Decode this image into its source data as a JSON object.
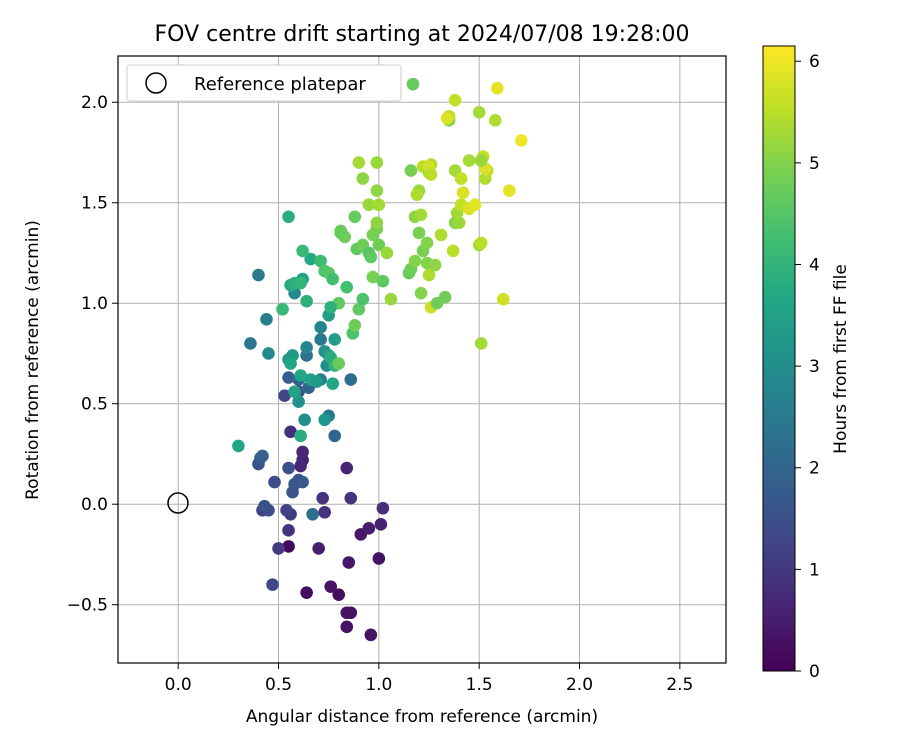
{
  "chart_data": {
    "type": "scatter",
    "title": "FOV centre drift starting at 2024/07/08 19:28:00",
    "xlabel": "Angular distance from reference (arcmin)",
    "ylabel": "Rotation from reference (arcmin)",
    "xlim": [
      -0.3,
      2.73
    ],
    "ylim": [
      -0.79,
      2.23
    ],
    "x_ticks": [
      0.0,
      0.5,
      1.0,
      1.5,
      2.0,
      2.5
    ],
    "x_tick_labels": [
      "0.0",
      "0.5",
      "1.0",
      "1.5",
      "2.0",
      "2.5"
    ],
    "y_ticks": [
      -0.5,
      0.0,
      0.5,
      1.0,
      1.5,
      2.0
    ],
    "y_tick_labels": [
      "−0.5",
      "0.0",
      "0.5",
      "1.0",
      "1.5",
      "2.0"
    ],
    "grid": true,
    "legend": {
      "placement": "top-left",
      "entries": [
        "Reference platepar"
      ]
    },
    "reference_point": {
      "x": 0.0,
      "y": 0.0,
      "marker": "open-circle"
    },
    "colorbar": {
      "label": "Hours from first FF file",
      "range": [
        0,
        6.15
      ],
      "ticks": [
        0,
        1,
        2,
        3,
        4,
        5,
        6
      ],
      "tick_labels": [
        "0",
        "1",
        "2",
        "3",
        "4",
        "5",
        "6"
      ],
      "colormap": "viridis"
    },
    "points": [
      [
        0.55,
        -0.21,
        0.1
      ],
      [
        0.64,
        -0.44,
        0.2
      ],
      [
        0.8,
        -0.45,
        0.2
      ],
      [
        0.76,
        -0.41,
        0.3
      ],
      [
        0.84,
        -0.54,
        0.3
      ],
      [
        0.86,
        -0.54,
        0.3
      ],
      [
        0.84,
        -0.61,
        0.3
      ],
      [
        0.96,
        -0.65,
        0.3
      ],
      [
        1.0,
        -0.27,
        0.3
      ],
      [
        0.7,
        -0.22,
        0.5
      ],
      [
        0.85,
        -0.29,
        0.4
      ],
      [
        0.91,
        -0.15,
        0.4
      ],
      [
        0.95,
        -0.12,
        0.5
      ],
      [
        1.01,
        -0.1,
        0.6
      ],
      [
        1.02,
        -0.02,
        0.8
      ],
      [
        0.86,
        0.03,
        0.9
      ],
      [
        0.73,
        -0.04,
        0.9
      ],
      [
        0.72,
        0.03,
        0.9
      ],
      [
        0.84,
        0.18,
        0.6
      ],
      [
        0.62,
        0.22,
        0.6
      ],
      [
        0.62,
        0.26,
        0.7
      ],
      [
        0.61,
        0.19,
        0.7
      ],
      [
        0.56,
        0.36,
        0.8
      ],
      [
        0.55,
        -0.13,
        0.9
      ],
      [
        0.5,
        -0.22,
        1.0
      ],
      [
        0.56,
        -0.05,
        1.1
      ],
      [
        0.54,
        -0.03,
        1.2
      ],
      [
        0.42,
        -0.03,
        1.2
      ],
      [
        0.47,
        -0.4,
        1.3
      ],
      [
        0.45,
        -0.03,
        1.4
      ],
      [
        0.43,
        -0.01,
        1.5
      ],
      [
        0.4,
        0.2,
        1.5
      ],
      [
        0.48,
        0.11,
        1.4
      ],
      [
        0.55,
        0.18,
        1.5
      ],
      [
        0.57,
        0.06,
        1.6
      ],
      [
        0.58,
        0.1,
        1.7
      ],
      [
        0.6,
        0.12,
        1.6
      ],
      [
        0.62,
        0.11,
        1.7
      ],
      [
        0.67,
        -0.05,
        2.2
      ],
      [
        0.41,
        0.23,
        1.8
      ],
      [
        0.42,
        0.24,
        1.9
      ],
      [
        0.53,
        0.54,
        1.3
      ],
      [
        0.55,
        0.63,
        1.8
      ],
      [
        0.6,
        0.62,
        1.9
      ],
      [
        0.6,
        0.56,
        1.6
      ],
      [
        0.65,
        0.58,
        2.0
      ],
      [
        0.64,
        0.74,
        2.3
      ],
      [
        0.71,
        0.62,
        2.6
      ],
      [
        0.75,
        0.44,
        2.5
      ],
      [
        0.78,
        0.34,
        2.0
      ],
      [
        0.86,
        0.62,
        2.2
      ],
      [
        0.73,
        0.42,
        3.2
      ],
      [
        0.63,
        0.42,
        3.0
      ],
      [
        0.6,
        0.51,
        3.1
      ],
      [
        0.58,
        0.56,
        3.5
      ],
      [
        0.61,
        0.64,
        3.6
      ],
      [
        0.71,
        0.82,
        2.5
      ],
      [
        0.64,
        0.78,
        2.8
      ],
      [
        0.71,
        0.88,
        2.8
      ],
      [
        0.55,
        0.72,
        3.2
      ],
      [
        0.57,
        0.74,
        3.3
      ],
      [
        0.56,
        0.7,
        3.6
      ],
      [
        0.66,
        0.62,
        3.5
      ],
      [
        0.69,
        0.61,
        3.3
      ],
      [
        0.74,
        0.69,
        3.0
      ],
      [
        0.73,
        0.76,
        3.1
      ],
      [
        0.75,
        0.74,
        3.4
      ],
      [
        0.76,
        0.73,
        3.8
      ],
      [
        0.78,
        0.69,
        4.0
      ],
      [
        0.77,
        0.6,
        3.6
      ],
      [
        0.78,
        0.82,
        3.4
      ],
      [
        0.75,
        0.94,
        3.4
      ],
      [
        0.8,
        0.7,
        4.7
      ],
      [
        0.3,
        0.29,
        3.6
      ],
      [
        0.61,
        0.34,
        3.8
      ],
      [
        0.45,
        0.75,
        2.9
      ],
      [
        0.36,
        0.8,
        2.4
      ],
      [
        0.44,
        0.92,
        2.6
      ],
      [
        0.4,
        1.14,
        2.5
      ],
      [
        0.58,
        1.05,
        2.9
      ],
      [
        0.56,
        1.09,
        3.7
      ],
      [
        0.58,
        1.1,
        3.9
      ],
      [
        0.62,
        1.12,
        3.5
      ],
      [
        0.64,
        1.01,
        3.9
      ],
      [
        0.52,
        0.97,
        4.1
      ],
      [
        0.61,
        1.1,
        4.0
      ],
      [
        0.66,
        1.22,
        3.7
      ],
      [
        0.62,
        1.26,
        4.1
      ],
      [
        0.55,
        1.43,
        3.8
      ],
      [
        0.71,
        1.21,
        4.2
      ],
      [
        0.73,
        1.16,
        4.4
      ],
      [
        0.75,
        1.15,
        4.5
      ],
      [
        0.77,
        1.12,
        4.3
      ],
      [
        0.8,
        1.0,
        4.6
      ],
      [
        0.76,
        0.98,
        3.9
      ],
      [
        0.84,
        1.08,
        4.3
      ],
      [
        0.87,
        0.85,
        4.4
      ],
      [
        0.88,
        0.89,
        4.8
      ],
      [
        0.9,
        0.97,
        4.6
      ],
      [
        0.92,
        1.02,
        4.4
      ],
      [
        0.81,
        1.35,
        4.6
      ],
      [
        0.83,
        1.33,
        4.8
      ],
      [
        0.81,
        1.36,
        4.7
      ],
      [
        0.89,
        1.27,
        4.6
      ],
      [
        0.92,
        1.29,
        4.8
      ],
      [
        0.95,
        1.25,
        4.5
      ],
      [
        0.97,
        1.34,
        4.9
      ],
      [
        0.99,
        1.37,
        4.9
      ],
      [
        1.0,
        1.29,
        4.8
      ],
      [
        0.99,
        1.4,
        5.1
      ],
      [
        0.96,
        1.23,
        4.6
      ],
      [
        0.97,
        1.13,
        4.9
      ],
      [
        0.88,
        1.43,
        4.7
      ],
      [
        0.95,
        1.49,
        5.2
      ],
      [
        0.99,
        1.56,
        5.1
      ],
      [
        1.0,
        1.49,
        5.3
      ],
      [
        0.92,
        1.62,
        5.1
      ],
      [
        0.9,
        1.7,
        5.3
      ],
      [
        0.99,
        1.7,
        5.2
      ],
      [
        1.02,
        1.11,
        4.6
      ],
      [
        1.04,
        1.25,
        5.2
      ],
      [
        1.06,
        1.02,
        5.2
      ],
      [
        1.15,
        1.15,
        4.7
      ],
      [
        1.16,
        1.17,
        4.8
      ],
      [
        1.18,
        1.21,
        5.0
      ],
      [
        1.21,
        1.05,
        5.0
      ],
      [
        1.24,
        1.2,
        5.0
      ],
      [
        1.25,
        1.14,
        5.4
      ],
      [
        1.26,
        0.98,
        5.7
      ],
      [
        1.29,
        1.0,
        4.8
      ],
      [
        1.33,
        1.03,
        4.8
      ],
      [
        1.22,
        1.26,
        4.9
      ],
      [
        1.28,
        1.19,
        5.1
      ],
      [
        1.24,
        1.3,
        5.0
      ],
      [
        1.2,
        1.35,
        4.9
      ],
      [
        1.31,
        1.34,
        5.4
      ],
      [
        1.37,
        1.26,
        5.5
      ],
      [
        1.38,
        1.4,
        5.0
      ],
      [
        1.4,
        1.4,
        5.2
      ],
      [
        1.39,
        1.45,
        5.3
      ],
      [
        1.41,
        1.49,
        5.6
      ],
      [
        1.42,
        1.55,
        5.8
      ],
      [
        1.41,
        1.62,
        5.6
      ],
      [
        1.45,
        1.47,
        5.8
      ],
      [
        1.48,
        1.49,
        5.9
      ],
      [
        1.5,
        1.29,
        5.3
      ],
      [
        1.51,
        1.3,
        5.5
      ],
      [
        1.51,
        0.8,
        5.3
      ],
      [
        1.62,
        1.02,
        5.7
      ],
      [
        1.18,
        1.43,
        5.1
      ],
      [
        1.21,
        1.44,
        5.3
      ],
      [
        1.2,
        1.56,
        5.2
      ],
      [
        1.19,
        1.54,
        5.4
      ],
      [
        1.22,
        1.68,
        5.5
      ],
      [
        1.25,
        1.65,
        5.3
      ],
      [
        1.26,
        1.69,
        5.4
      ],
      [
        1.25,
        1.68,
        5.7
      ],
      [
        1.26,
        1.64,
        5.5
      ],
      [
        1.16,
        1.66,
        4.9
      ],
      [
        1.38,
        1.66,
        5.3
      ],
      [
        1.41,
        1.62,
        5.6
      ],
      [
        1.45,
        1.71,
        5.3
      ],
      [
        1.52,
        1.73,
        5.6
      ],
      [
        1.53,
        1.62,
        5.4
      ],
      [
        1.54,
        1.66,
        5.5
      ],
      [
        1.53,
        1.67,
        5.8
      ],
      [
        1.65,
        1.56,
        5.9
      ],
      [
        1.71,
        1.81,
        6.0
      ],
      [
        1.35,
        1.91,
        5.0
      ],
      [
        1.35,
        1.93,
        5.5
      ],
      [
        1.38,
        2.01,
        5.6
      ],
      [
        1.5,
        1.95,
        5.3
      ],
      [
        1.58,
        1.91,
        5.4
      ],
      [
        1.59,
        2.07,
        5.9
      ],
      [
        1.17,
        2.09,
        4.7
      ],
      [
        1.34,
        1.92,
        5.8
      ],
      [
        1.51,
        1.71,
        5.2
      ]
    ]
  }
}
